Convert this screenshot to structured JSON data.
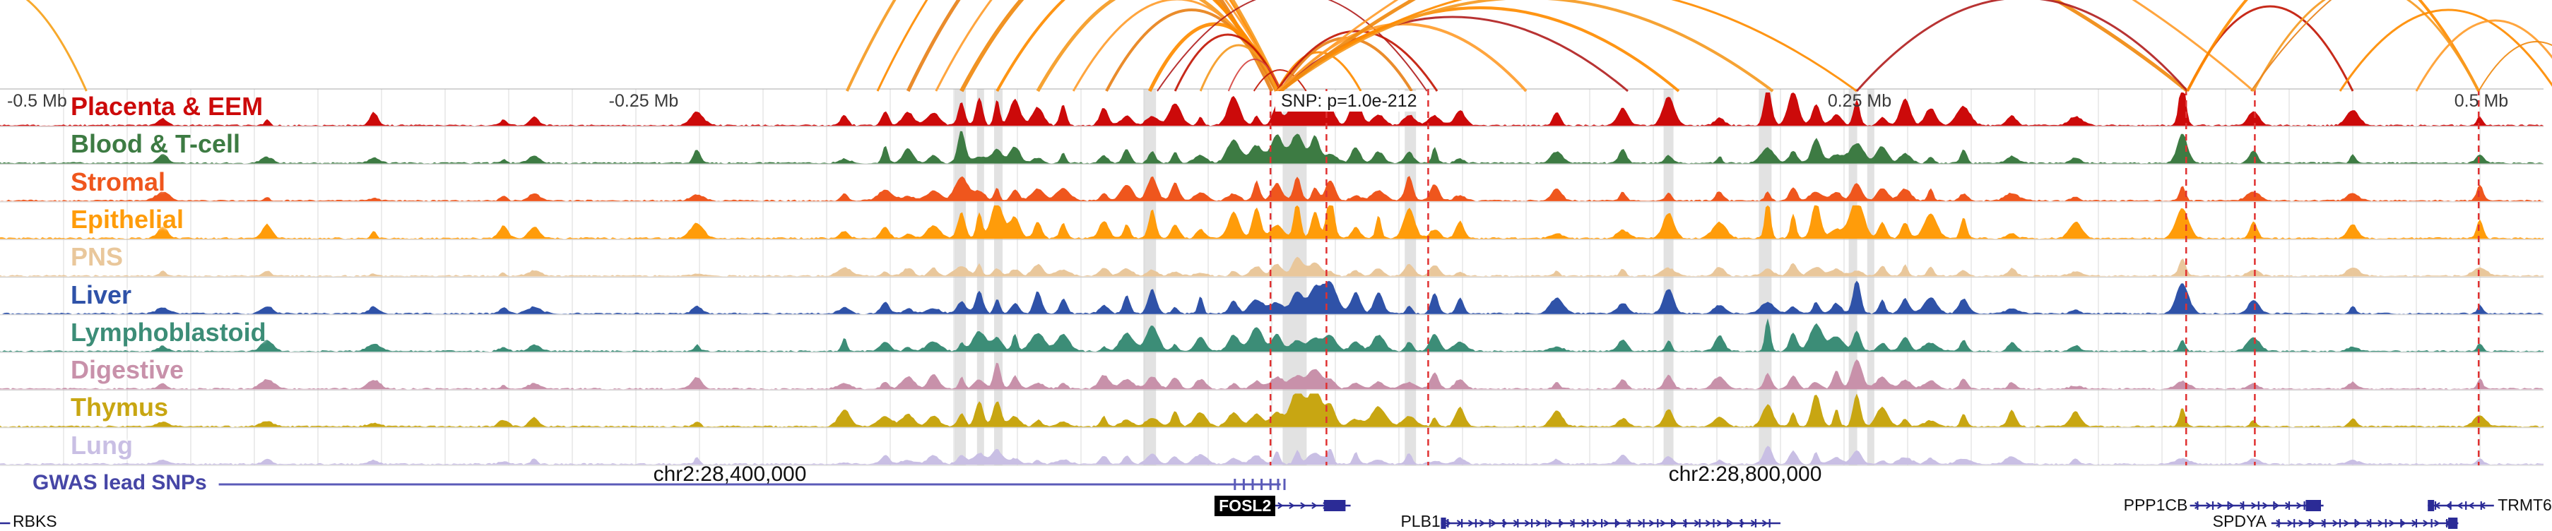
{
  "chart_data": {
    "type": "genome-browser",
    "region": {
      "chromosome": "chr2",
      "snp_annotation": "SNP: p=1.0e-212"
    },
    "ruler": {
      "labels": [
        {
          "text": "-0.5 Mb",
          "x": 0.004,
          "align": "left"
        },
        {
          "text": "-0.25 Mb",
          "x": 0.253,
          "align": "center"
        },
        {
          "text": "SNP: p=1.0e-212",
          "x": 0.5015,
          "align": "left"
        },
        {
          "text": "0.25 Mb",
          "x": 0.731,
          "align": "center"
        },
        {
          "text": "0.5 Mb",
          "x": 0.9755,
          "align": "center"
        }
      ]
    },
    "coordinates": {
      "left": {
        "text": "chr2:28,400,000",
        "x": 0.287
      },
      "right": {
        "text": "chr2:28,800,000",
        "x": 0.686
      }
    },
    "tracks": [
      {
        "name": "Placenta & EEM",
        "color": "#CC0A0A",
        "amp": 1.0
      },
      {
        "name": "Blood & T-cell",
        "color": "#3D7B43",
        "amp": 0.8
      },
      {
        "name": "Stromal",
        "color": "#EF561D",
        "amp": 0.75
      },
      {
        "name": "Epithelial",
        "color": "#FF9C0A",
        "amp": 1.0
      },
      {
        "name": "PNS",
        "color": "#E9C79B",
        "amp": 0.45
      },
      {
        "name": "Liver",
        "color": "#2F52A8",
        "amp": 0.85
      },
      {
        "name": "Lymphoblastoid",
        "color": "#3C8D77",
        "amp": 0.8
      },
      {
        "name": "Digestive",
        "color": "#C891AA",
        "amp": 0.7
      },
      {
        "name": "Thymus",
        "color": "#C8A612",
        "amp": 0.9
      },
      {
        "name": "Lung",
        "color": "#C9BFE4",
        "amp": 0.42
      }
    ],
    "track_boosts": {
      "5:40": 1.9,
      "8:25": 1.5,
      "8:26": 1.4,
      "3:10": 1.4,
      "3:26": 1.4,
      "0:47": 1.5,
      "1:36": 1.5,
      "6:36": 1.3,
      "0:40": 1.2
    },
    "peaks": [
      [
        0.064,
        0.25
      ],
      [
        0.105,
        0.3
      ],
      [
        0.147,
        0.28
      ],
      [
        0.198,
        0.35
      ],
      [
        0.21,
        0.3
      ],
      [
        0.274,
        0.35
      ],
      [
        0.332,
        0.4
      ],
      [
        0.348,
        0.45
      ],
      [
        0.357,
        0.4
      ],
      [
        0.367,
        0.5
      ],
      [
        0.378,
        0.85
      ],
      [
        0.385,
        0.7
      ],
      [
        0.392,
        0.8
      ],
      [
        0.399,
        0.6
      ],
      [
        0.408,
        0.55
      ],
      [
        0.418,
        0.5
      ],
      [
        0.434,
        0.45
      ],
      [
        0.443,
        0.5
      ],
      [
        0.453,
        0.7
      ],
      [
        0.462,
        0.55
      ],
      [
        0.472,
        0.5
      ],
      [
        0.485,
        0.6
      ],
      [
        0.494,
        0.65
      ],
      [
        0.502,
        0.8
      ],
      [
        0.51,
        0.9
      ],
      [
        0.517,
        0.85
      ],
      [
        0.523,
        0.8
      ],
      [
        0.533,
        0.6
      ],
      [
        0.542,
        0.55
      ],
      [
        0.554,
        0.75
      ],
      [
        0.564,
        0.5
      ],
      [
        0.574,
        0.45
      ],
      [
        0.612,
        0.4
      ],
      [
        0.638,
        0.45
      ],
      [
        0.656,
        0.6
      ],
      [
        0.676,
        0.5
      ],
      [
        0.695,
        0.9
      ],
      [
        0.705,
        0.7
      ],
      [
        0.714,
        0.8
      ],
      [
        0.722,
        0.6
      ],
      [
        0.73,
        0.95
      ],
      [
        0.74,
        0.6
      ],
      [
        0.749,
        0.55
      ],
      [
        0.759,
        0.5
      ],
      [
        0.772,
        0.45
      ],
      [
        0.791,
        0.4
      ],
      [
        0.816,
        0.35
      ],
      [
        0.858,
        0.8
      ],
      [
        0.886,
        0.45
      ],
      [
        0.925,
        0.4
      ],
      [
        0.975,
        0.5
      ]
    ],
    "highlights": [
      [
        0.3775,
        16
      ],
      [
        0.3855,
        10
      ],
      [
        0.3925,
        12
      ],
      [
        0.452,
        18
      ],
      [
        0.509,
        34
      ],
      [
        0.5545,
        16
      ],
      [
        0.656,
        14
      ],
      [
        0.694,
        18
      ],
      [
        0.7285,
        12
      ],
      [
        0.7355,
        10
      ]
    ],
    "red_dashed_lines": [
      0.4995,
      0.5215,
      0.5615,
      0.8595,
      0.8865,
      0.9745
    ],
    "arcs": [
      [
        -0.04,
        0.034,
        150,
        3,
        "#F6A21B"
      ],
      [
        0.333,
        0.5035,
        330,
        4,
        "#F59B23"
      ],
      [
        0.345,
        0.503,
        300,
        3,
        "#FF8C00"
      ],
      [
        0.357,
        0.5,
        270,
        5,
        "#E8821A"
      ],
      [
        0.368,
        0.5035,
        240,
        3,
        "#FF9D2E"
      ],
      [
        0.378,
        0.502,
        210,
        6,
        "#F08A10"
      ],
      [
        0.392,
        0.5035,
        180,
        4,
        "#FF8C00"
      ],
      [
        0.408,
        0.502,
        150,
        5,
        "#F59B23"
      ],
      [
        0.422,
        0.5035,
        130,
        3,
        "#FF9D2E"
      ],
      [
        0.435,
        0.502,
        115,
        4,
        "#E8821A"
      ],
      [
        0.452,
        0.5035,
        95,
        5,
        "#FF8C00"
      ],
      [
        0.462,
        0.5035,
        80,
        3,
        "#C21807"
      ],
      [
        0.472,
        0.502,
        65,
        3,
        "#F59B23"
      ],
      [
        0.483,
        0.5035,
        45,
        2,
        "#D64541"
      ],
      [
        0.493,
        0.5135,
        30,
        2,
        "#C21807"
      ],
      [
        0.455,
        0.561,
        140,
        2,
        "#B22222"
      ],
      [
        0.502,
        0.535,
        55,
        3,
        "#FF8C00"
      ],
      [
        0.5035,
        0.555,
        75,
        4,
        "#E8821A"
      ],
      [
        0.502,
        0.565,
        85,
        3,
        "#C21807"
      ],
      [
        0.5035,
        0.6,
        95,
        4,
        "#FF9D2E"
      ],
      [
        0.502,
        0.64,
        105,
        3,
        "#B22222"
      ],
      [
        0.5035,
        0.66,
        118,
        4,
        "#FF8C00"
      ],
      [
        0.5035,
        0.697,
        132,
        4,
        "#F59B23"
      ],
      [
        0.502,
        0.73,
        150,
        3,
        "#FF8C00"
      ],
      [
        0.5035,
        0.86,
        260,
        5,
        "#F08A10"
      ],
      [
        0.502,
        0.886,
        300,
        3,
        "#FF9D2E"
      ],
      [
        0.73,
        0.86,
        132,
        3,
        "#B22222"
      ],
      [
        0.86,
        0.925,
        120,
        3,
        "#C21807"
      ],
      [
        0.86,
        0.9745,
        200,
        4,
        "#FF8C00"
      ],
      [
        0.886,
        0.9745,
        150,
        3,
        "#F59B23"
      ],
      [
        0.92,
        1.005,
        115,
        3,
        "#FF8C00"
      ],
      [
        0.95,
        1.012,
        100,
        3,
        "#FF9D2E"
      ],
      [
        0.9745,
        1.02,
        70,
        2,
        "#F08A10"
      ],
      [
        0.885,
        1.04,
        200,
        2,
        "#E8821A"
      ]
    ],
    "gwas": {
      "label": "GWAS lead SNPs",
      "color": "#4646A6",
      "line_color": "#5B5BB8",
      "line": [
        0.086,
        0.5035
      ],
      "ticks": [
        0.4855,
        0.489,
        0.4925,
        0.496,
        0.4995,
        0.5025,
        0.505
      ]
    },
    "gene_color": "#2B2B96",
    "genes": [
      {
        "name": "RBKS",
        "row": 2,
        "line": [
          0.0,
          0.004
        ],
        "strand": "<",
        "label_x": 0.005,
        "anchor": "left",
        "ticks_every": 0,
        "exons": []
      },
      {
        "name": "FOSL2",
        "row": 1,
        "line": [
          0.5005,
          0.531
        ],
        "strand": ">",
        "label_x": 0.4895,
        "anchor": "center",
        "style": "box",
        "ticks_every": 0,
        "exons": [
          [
            0.5205,
            0.529
          ]
        ]
      },
      {
        "name": "PLB1",
        "row": 2,
        "line": [
          0.5665,
          0.7
        ],
        "strand": ">",
        "label_x": 0.5585,
        "anchor": "center",
        "ticks_every": 0.0055,
        "exons": [
          [
            0.5665,
            0.5685
          ]
        ]
      },
      {
        "name": "PPP1CB",
        "row": 1,
        "line": [
          0.861,
          0.9135
        ],
        "strand": ">",
        "label_x": 0.8475,
        "anchor": "center",
        "ticks_every": 0.006,
        "exons": [
          [
            0.9065,
            0.9125
          ]
        ]
      },
      {
        "name": "SPDYA",
        "row": 2,
        "line": [
          0.893,
          0.9665
        ],
        "strand": ">",
        "label_x": 0.8805,
        "anchor": "center",
        "ticks_every": 0.006,
        "exons": [
          [
            0.9625,
            0.9662
          ]
        ]
      },
      {
        "name": "TRMT6",
        "row": 1,
        "line": [
          0.9545,
          0.9805
        ],
        "strand": "<",
        "label_x": 0.982,
        "anchor": "left",
        "ticks_every": 0.006,
        "exons": [
          [
            0.9545,
            0.957
          ]
        ]
      }
    ]
  }
}
